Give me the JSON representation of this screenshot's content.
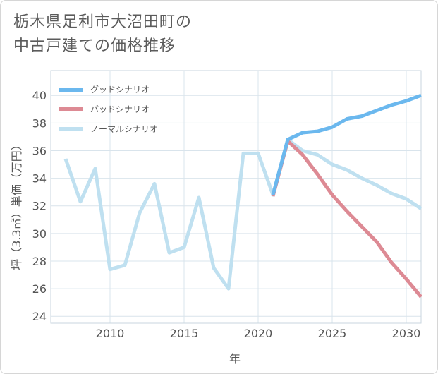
{
  "title_line1": "栃木県足利市大沼田町の",
  "title_line2": "中古戸建ての価格推移",
  "chart_data": {
    "type": "line",
    "xlabel": "年",
    "ylabel": "坪（3.3㎡）単価（万円）",
    "xlim": [
      2006,
      2031
    ],
    "ylim": [
      23.5,
      41.8
    ],
    "xticks": [
      2010,
      2015,
      2020,
      2025,
      2030
    ],
    "yticks": [
      24,
      26,
      28,
      30,
      32,
      34,
      36,
      38,
      40
    ],
    "grid": true,
    "legend_position": "top-left",
    "series": [
      {
        "name": "グッドシナリオ",
        "color": "#6bb8ee",
        "x": [
          2021,
          2022,
          2023,
          2024,
          2025,
          2026,
          2027,
          2028,
          2029,
          2030,
          2031
        ],
        "y": [
          32.8,
          36.8,
          37.3,
          37.4,
          37.7,
          38.3,
          38.5,
          38.9,
          39.3,
          39.6,
          40.0
        ]
      },
      {
        "name": "バッドシナリオ",
        "color": "#dd8a94",
        "x": [
          2021,
          2022,
          2023,
          2024,
          2025,
          2026,
          2027,
          2028,
          2029,
          2030,
          2031
        ],
        "y": [
          32.7,
          36.7,
          35.7,
          34.3,
          32.8,
          31.6,
          30.5,
          29.4,
          27.9,
          26.7,
          25.4
        ]
      },
      {
        "name": "ノーマルシナリオ",
        "color": "#bfe0f0",
        "x": [
          2007,
          2008,
          2009,
          2010,
          2011,
          2012,
          2013,
          2014,
          2015,
          2016,
          2017,
          2018,
          2019,
          2020,
          2021,
          2022,
          2023,
          2024,
          2025,
          2026,
          2027,
          2028,
          2029,
          2030,
          2031
        ],
        "y": [
          35.4,
          32.3,
          34.7,
          27.4,
          27.7,
          31.5,
          33.6,
          28.6,
          29.0,
          32.6,
          27.5,
          26.0,
          35.8,
          35.8,
          32.8,
          36.8,
          36.0,
          35.7,
          35.0,
          34.6,
          34.0,
          33.5,
          32.9,
          32.5,
          31.8
        ]
      }
    ]
  }
}
